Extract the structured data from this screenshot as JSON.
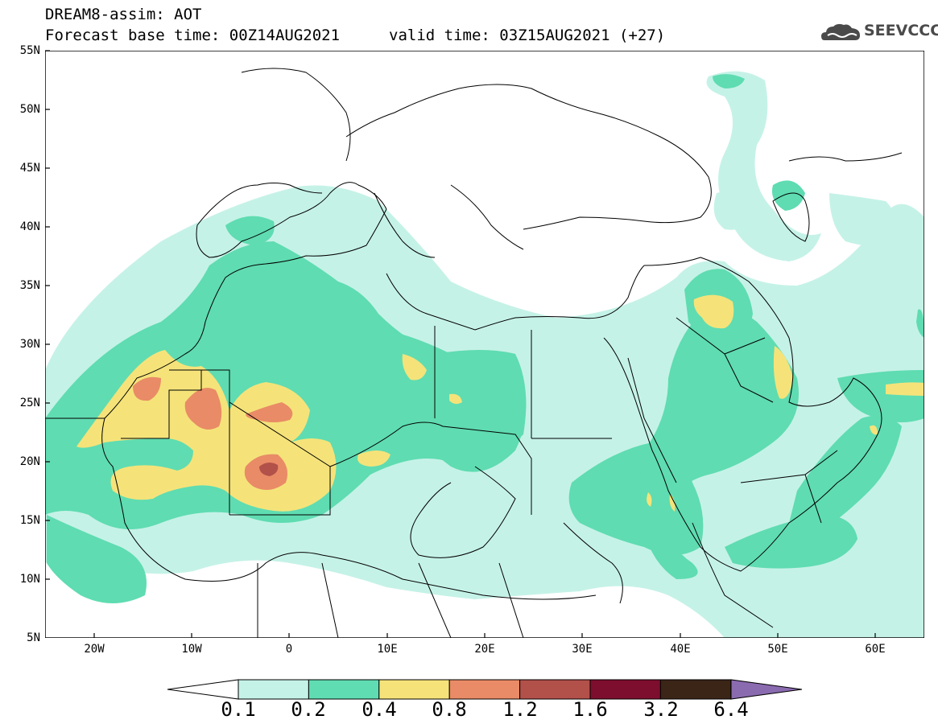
{
  "header": {
    "title": "DREAM8-assim: AOT",
    "base_time": "Forecast base time: 00Z14AUG2021",
    "valid_time": "valid time: 03Z15AUG2021 (+27)"
  },
  "logo": {
    "text": "SEEVCCC",
    "icon": "cloud-logo-icon",
    "color": "#4a4a4a"
  },
  "map": {
    "variable": "AOT",
    "lat_ticks": [
      {
        "label": "55N",
        "value": 55
      },
      {
        "label": "50N",
        "value": 50
      },
      {
        "label": "45N",
        "value": 45
      },
      {
        "label": "40N",
        "value": 40
      },
      {
        "label": "35N",
        "value": 35
      },
      {
        "label": "30N",
        "value": 30
      },
      {
        "label": "25N",
        "value": 25
      },
      {
        "label": "20N",
        "value": 20
      },
      {
        "label": "15N",
        "value": 15
      },
      {
        "label": "10N",
        "value": 10
      },
      {
        "label": "5N",
        "value": 5
      }
    ],
    "lon_ticks": [
      {
        "label": "20W",
        "value": -20
      },
      {
        "label": "10W",
        "value": -10
      },
      {
        "label": "0",
        "value": 0
      },
      {
        "label": "10E",
        "value": 10
      },
      {
        "label": "20E",
        "value": 20
      },
      {
        "label": "30E",
        "value": 30
      },
      {
        "label": "40E",
        "value": 40
      },
      {
        "label": "50E",
        "value": 50
      },
      {
        "label": "60E",
        "value": 60
      }
    ],
    "extent": {
      "lon": [
        -25,
        65
      ],
      "lat": [
        5,
        55
      ]
    }
  },
  "colorbar": {
    "labels": [
      "0.1",
      "0.2",
      "0.4",
      "0.8",
      "1.2",
      "1.6",
      "3.2",
      "6.4"
    ],
    "colors": [
      "#c5f2e7",
      "#5fdcb1",
      "#f5e37a",
      "#e98b66",
      "#b2504a",
      "#7d0e2e",
      "#3a2517",
      "#8b6bb0"
    ],
    "below_min_color": "#ffffff"
  },
  "levels": {
    "l1": "#c5f2e7",
    "l2": "#5fdcb1",
    "l3": "#f5e37a",
    "l4": "#e98b66",
    "l5": "#b2504a"
  }
}
